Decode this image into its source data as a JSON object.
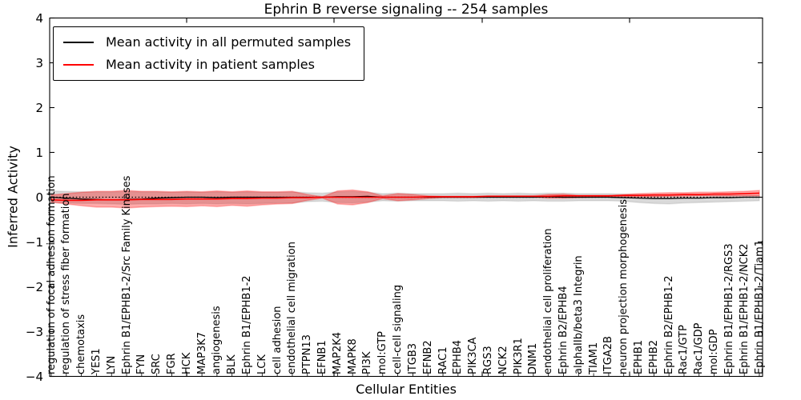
{
  "chart_data": {
    "type": "line",
    "title": "Ephrin B reverse signaling -- 254 samples",
    "xlabel": "Cellular Entities",
    "ylabel": "Inferred Activity",
    "ylim": [
      -4,
      4
    ],
    "yticks": [
      4,
      3,
      2,
      1,
      0,
      -1,
      -2,
      -3,
      -4
    ],
    "grid": false,
    "legend_position": "upper-left",
    "categories": [
      "regulation of focal adhesion formation",
      "regulation of stress fiber formation",
      "chemotaxis",
      "YES1",
      "LYN",
      "Ephrin B1/EPHB1-2/Src Family Kinases",
      "FYN",
      "SRC",
      "FGR",
      "HCK",
      "MAP3K7",
      "angiogenesis",
      "BLK",
      "Ephrin B1/EPHB1-2",
      "LCK",
      "cell adhesion",
      "endothelial cell migration",
      "PTPN13",
      "EFNB1",
      "MAP2K4",
      "MAPK8",
      "PI3K",
      "mol:GTP",
      "cell-cell signaling",
      "ITGB3",
      "EFNB2",
      "RAC1",
      "EPHB4",
      "PIK3CA",
      "RGS3",
      "NCK2",
      "PIK3R1",
      "DNM1",
      "endothelial cell proliferation",
      "Ephrin B2/EPHB4",
      "alphaIIb/beta3 Integrin",
      "TIAM1",
      "ITGA2B",
      "neuron projection morphogenesis",
      "EPHB1",
      "EPHB2",
      "Ephrin B2/EPHB1-2",
      "Rac1/GTP",
      "Rac1/GDP",
      "mol:GDP",
      "Ephrin B1/EPHB1-2/RGS3",
      "Ephrin B1/EPHB1-2/NCK2",
      "Ephrin B1/EPHB1-2/Tiam1"
    ],
    "series": [
      {
        "name": "Mean activity in all permuted samples",
        "color": "#000000",
        "width": 1.3,
        "values": [
          0,
          -0.02,
          -0.04,
          -0.05,
          -0.06,
          -0.05,
          -0.04,
          -0.02,
          -0.01,
          0,
          0,
          -0.01,
          0,
          0,
          0,
          0,
          0,
          0,
          0,
          0.01,
          0.01,
          0.02,
          0,
          0,
          0,
          0,
          0,
          0,
          0,
          0,
          0,
          0,
          0,
          0.01,
          0,
          0,
          0,
          0,
          -0.01,
          -0.02,
          -0.03,
          -0.03,
          -0.02,
          -0.02,
          -0.01,
          -0.01,
          0,
          0
        ]
      },
      {
        "name": "Mean activity in patient samples",
        "color": "#ff0000",
        "width": 1.6,
        "values": [
          -0.06,
          -0.07,
          -0.07,
          -0.06,
          -0.06,
          -0.06,
          -0.05,
          -0.05,
          -0.05,
          -0.04,
          -0.04,
          -0.04,
          -0.03,
          -0.03,
          -0.02,
          -0.02,
          -0.01,
          -0.01,
          0,
          0,
          0,
          0,
          0,
          0,
          0,
          0.01,
          0.01,
          0.01,
          0.01,
          0.02,
          0.02,
          0.02,
          0.02,
          0.02,
          0.03,
          0.03,
          0.03,
          0.03,
          0.04,
          0.04,
          0.05,
          0.05,
          0.06,
          0.06,
          0.07,
          0.07,
          0.08,
          0.09
        ]
      }
    ],
    "bands": [
      {
        "name": "permuted-samples-range",
        "color": "#000000",
        "fill_opacity": 0.15,
        "edge_opacity": 0.08,
        "upper": [
          0.14,
          0.13,
          0.12,
          0.12,
          0.12,
          0.13,
          0.12,
          0.12,
          0.11,
          0.12,
          0.11,
          0.12,
          0.11,
          0.12,
          0.11,
          0.11,
          0.12,
          0.1,
          0.09,
          0.12,
          0.13,
          0.11,
          0.08,
          0.09,
          0.08,
          0.08,
          0.08,
          0.09,
          0.08,
          0.09,
          0.08,
          0.09,
          0.08,
          0.09,
          0.09,
          0.08,
          0.08,
          0.08,
          0.07,
          0.06,
          0.05,
          0.05,
          0.05,
          0.05,
          0.04,
          0.04,
          0.04,
          0.04
        ],
        "lower": [
          -0.12,
          -0.13,
          -0.14,
          -0.14,
          -0.15,
          -0.16,
          -0.15,
          -0.15,
          -0.14,
          -0.15,
          -0.14,
          -0.15,
          -0.14,
          -0.15,
          -0.14,
          -0.13,
          -0.13,
          -0.1,
          -0.09,
          -0.12,
          -0.13,
          -0.11,
          -0.08,
          -0.09,
          -0.08,
          -0.08,
          -0.08,
          -0.09,
          -0.08,
          -0.09,
          -0.08,
          -0.09,
          -0.08,
          -0.09,
          -0.09,
          -0.08,
          -0.08,
          -0.08,
          -0.09,
          -0.12,
          -0.14,
          -0.15,
          -0.13,
          -0.12,
          -0.11,
          -0.1,
          -0.09,
          -0.08
        ]
      },
      {
        "name": "patient-samples-range",
        "color": "#ff0000",
        "fill_opacity": 0.33,
        "edge_opacity": 0.25,
        "upper": [
          0.05,
          0.08,
          0.11,
          0.13,
          0.13,
          0.15,
          0.13,
          0.13,
          0.12,
          0.13,
          0.12,
          0.14,
          0.12,
          0.14,
          0.12,
          0.12,
          0.13,
          0.06,
          0.01,
          0.14,
          0.16,
          0.12,
          0.03,
          0.08,
          0.06,
          0.03,
          0.02,
          0.02,
          0.02,
          0.03,
          0.03,
          0.03,
          0.03,
          0.06,
          0.07,
          0.04,
          0.04,
          0.04,
          0.06,
          0.08,
          0.09,
          0.1,
          0.1,
          0.11,
          0.11,
          0.12,
          0.13,
          0.15
        ],
        "lower": [
          -0.11,
          -0.15,
          -0.19,
          -0.22,
          -0.22,
          -0.24,
          -0.22,
          -0.21,
          -0.2,
          -0.21,
          -0.19,
          -0.21,
          -0.18,
          -0.2,
          -0.17,
          -0.15,
          -0.14,
          -0.07,
          -0.02,
          -0.15,
          -0.17,
          -0.12,
          -0.03,
          -0.08,
          -0.06,
          -0.03,
          -0.01,
          -0.01,
          -0.01,
          0,
          0,
          0,
          0,
          -0.02,
          -0.02,
          -0.01,
          0,
          0.01,
          0.01,
          0.01,
          0.01,
          0.02,
          0.02,
          0.03,
          0.03,
          0.03,
          0.03,
          0.03
        ]
      }
    ],
    "zero_line": {
      "y": 0,
      "style": "dotted",
      "color": "#000000"
    }
  },
  "colors": {
    "background": "#ffffff",
    "axis": "#000000",
    "permuted_line": "#000000",
    "patient_line": "#ff0000"
  }
}
